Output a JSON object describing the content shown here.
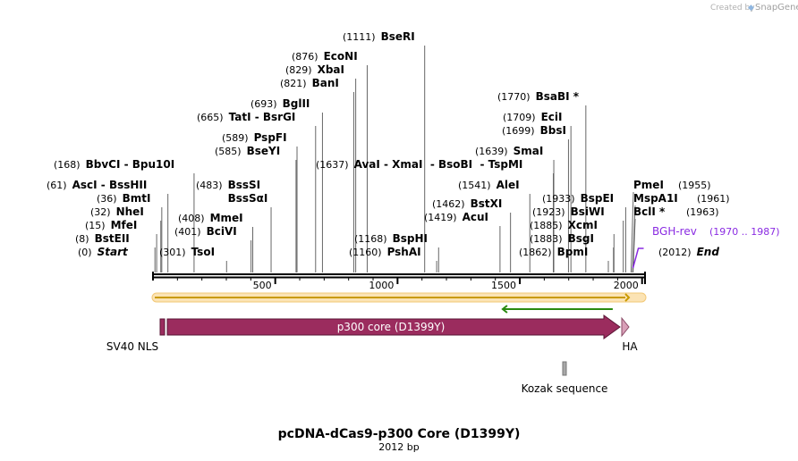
{
  "credit": {
    "prefix": "Created by",
    "brand": "SnapGene"
  },
  "plasmid": {
    "name": "pcDNA-dCas9-p300 Core (D1399Y)",
    "length_label": "2012 bp",
    "length": 2012
  },
  "scale": {
    "ticks": [
      500,
      1000,
      1500,
      2000
    ]
  },
  "colors": {
    "cds": "#9b2c5e",
    "primer": "#8a2be2",
    "orf_fwd": "#c99a00",
    "orf_rev": "#2a8a10",
    "backbone": "#000000",
    "kozak": "#a8a8a8",
    "ha": "#d9a0b8"
  },
  "sites": [
    {
      "pos_label": "(0)",
      "name": "Start",
      "pos": 0,
      "kind": "end"
    },
    {
      "pos_label": "(8)",
      "name": "BstEII",
      "pos": 8
    },
    {
      "pos_label": "(15)",
      "name": "MfeI",
      "pos": 15
    },
    {
      "pos_label": "(32)",
      "name": "NheI",
      "pos": 32
    },
    {
      "pos_label": "(36)",
      "name": "BmtI",
      "pos": 36
    },
    {
      "pos_label": "(61)",
      "name": "AscI",
      "pos": 61,
      "extra": " - BssHII"
    },
    {
      "pos_label": "(168)",
      "name": "BbvCI",
      "pos": 168,
      "extra": " - Bpu10I"
    },
    {
      "pos_label": "(301)",
      "name": "TsoI",
      "pos": 301
    },
    {
      "pos_label": "(401)",
      "name": "BciVI",
      "pos": 401
    },
    {
      "pos_label": "(408)",
      "name": "MmeI",
      "pos": 408
    },
    {
      "pos_label": "(483)",
      "name": "BssSI",
      "pos": 483,
      "extra_line": "BssSαI"
    },
    {
      "pos_label": "(585)",
      "name": "BseYI",
      "pos": 585
    },
    {
      "pos_label": "(589)",
      "name": "PspFI",
      "pos": 589
    },
    {
      "pos_label": "(665)",
      "name": "TatI",
      "pos": 665,
      "extra": " - BsrGI"
    },
    {
      "pos_label": "(693)",
      "name": "BglII",
      "pos": 693
    },
    {
      "pos_label": "(821)",
      "name": "BanI",
      "pos": 821
    },
    {
      "pos_label": "(829)",
      "name": "XbaI",
      "pos": 829
    },
    {
      "pos_label": "(876)",
      "name": "EcoNI",
      "pos": 876
    },
    {
      "pos_label": "(1111)",
      "name": "BseRI",
      "pos": 1111
    },
    {
      "pos_label": "(1160)",
      "name": "PshAI",
      "pos": 1160
    },
    {
      "pos_label": "(1168)",
      "name": "BspHI",
      "pos": 1168
    },
    {
      "pos_label": "(1637)",
      "name": "AvaI",
      "pos": 1637,
      "extra": " - XmaI  - BsoBI  - TspMI"
    },
    {
      "pos_label": "(1419)",
      "name": "AcuI",
      "pos": 1419
    },
    {
      "pos_label": "(1462)",
      "name": "BstXI",
      "pos": 1462
    },
    {
      "pos_label": "(1541)",
      "name": "AleI",
      "pos": 1541
    },
    {
      "pos_label": "(1639)",
      "name": "SmaI",
      "pos": 1639
    },
    {
      "pos_label": "(1699)",
      "name": "BbsI",
      "pos": 1699
    },
    {
      "pos_label": "(1709)",
      "name": "EciI",
      "pos": 1709
    },
    {
      "pos_label": "(1770)",
      "name": "BsaBI *",
      "pos": 1770
    },
    {
      "pos_label": "(1862)",
      "name": "BpmI",
      "pos": 1862
    },
    {
      "pos_label": "(1883)",
      "name": "BsgI",
      "pos": 1883
    },
    {
      "pos_label": "(1885)",
      "name": "XcmI",
      "pos": 1885
    },
    {
      "pos_label": "(1923)",
      "name": "BsiWI",
      "pos": 1923
    },
    {
      "pos_label": "(1933)",
      "name": "BspEI",
      "pos": 1933
    },
    {
      "pos_label": "(1963)",
      "name": "BclI *",
      "pos": 1963
    },
    {
      "pos_label": "(1961)",
      "name": "MspA1I",
      "pos": 1961
    },
    {
      "pos_label": "(1955)",
      "name": "PmeI",
      "pos": 1955
    },
    {
      "pos_label": "(2012)",
      "name": "End",
      "pos": 2012,
      "kind": "end"
    }
  ],
  "primer": {
    "name": "BGH-rev",
    "range_label": "(1970 .. 1987)",
    "start": 1970,
    "end": 1987
  },
  "orfs": [
    {
      "direction": "forward",
      "start": 0,
      "end": 2012
    },
    {
      "direction": "reverse",
      "start": 1430,
      "end": 1880
    }
  ],
  "features": [
    {
      "name": "SV40 NLS",
      "start": 36,
      "end": 57,
      "type": "nls"
    },
    {
      "name": "p300 core (D1399Y)",
      "start": 62,
      "end": 1938,
      "type": "cds"
    },
    {
      "name": "HA",
      "start": 1939,
      "end": 1965,
      "type": "tag"
    },
    {
      "name": "Kozak sequence",
      "start": 1682,
      "end": 1692,
      "type": "misc"
    }
  ]
}
